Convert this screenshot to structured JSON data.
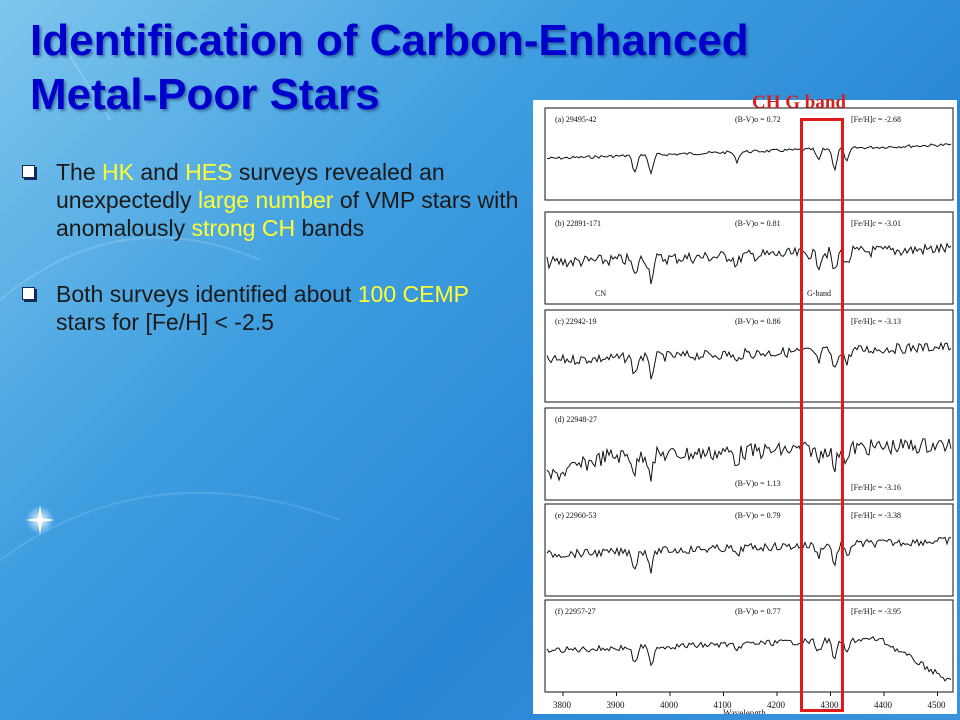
{
  "title": {
    "line1": "Identification of Carbon-Enhanced",
    "line2": "Metal-Poor Stars"
  },
  "bullets": [
    {
      "parts": [
        {
          "text": "The ",
          "highlight": false
        },
        {
          "text": "HK",
          "highlight": true
        },
        {
          "text": " and ",
          "highlight": false
        },
        {
          "text": "HES",
          "highlight": true
        },
        {
          "text": " surveys revealed an unexpectedly ",
          "highlight": false
        },
        {
          "text": "large number",
          "highlight": true
        },
        {
          "text": " of VMP stars with anomalously ",
          "highlight": false
        },
        {
          "text": "strong CH",
          "highlight": true
        },
        {
          "text": " bands",
          "highlight": false
        }
      ]
    },
    {
      "parts": [
        {
          "text": "Both surveys identified about ",
          "highlight": false
        },
        {
          "text": "100 CEMP",
          "highlight": true
        },
        {
          "text": " stars for [Fe/H] < -2.5",
          "highlight": false
        }
      ]
    }
  ],
  "figure": {
    "annotation": "CH G band",
    "annotation_color": "#d42020",
    "panels": [
      {
        "id": "(a) 29495-42",
        "bv": "(B-V)o = 0.72",
        "feh": "[Fe/H]c = -2.68"
      },
      {
        "id": "(b) 22891-171",
        "bv": "(B-V)o = 0.81",
        "feh": "[Fe/H]c = -3.01",
        "label_left": "CN",
        "label_right": "G-band"
      },
      {
        "id": "(c) 22942-19",
        "bv": "(B-V)o = 0.86",
        "feh": "[Fe/H]c = -3.13"
      },
      {
        "id": "(d) 22948-27",
        "bv": "(B-V)o = 1.13",
        "feh": "[Fe/H]c = -3.16"
      },
      {
        "id": "(e) 22960-53",
        "bv": "(B-V)o = 0.79",
        "feh": "[Fe/H]c = -3.38"
      },
      {
        "id": "(f) 22957-27",
        "bv": "(B-V)o = 0.77",
        "feh": "[Fe/H]c = -3.95"
      }
    ],
    "axis_ticks": [
      "3800",
      "3900",
      "4000",
      "4100",
      "4200",
      "4300",
      "4400",
      "4500"
    ],
    "axis_label": "Wavelength"
  },
  "colors": {
    "title": "#0000cc",
    "highlight": "#ffff33",
    "box": "#e01a1a"
  }
}
